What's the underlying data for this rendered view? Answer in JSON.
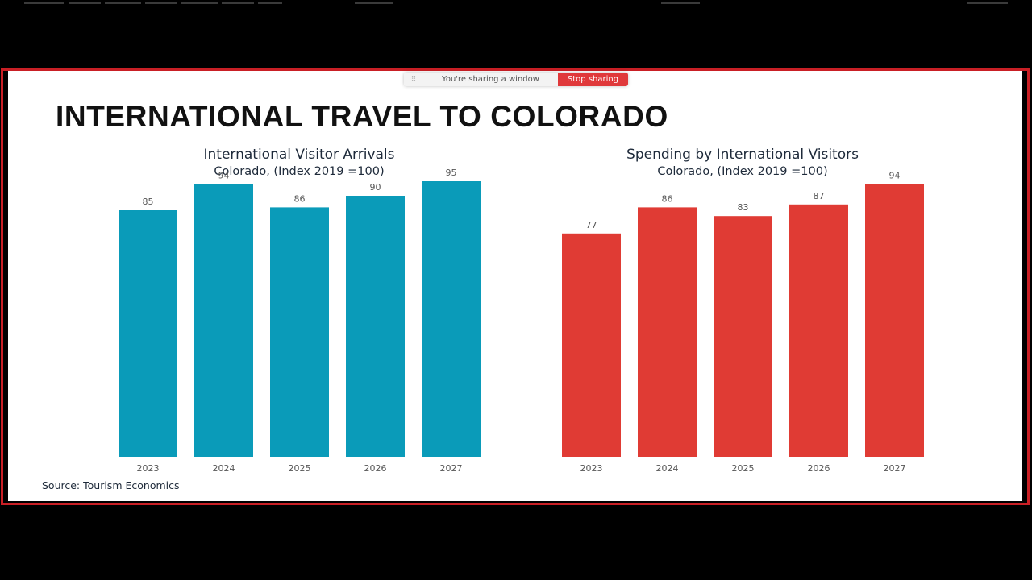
{
  "screen_share": {
    "message": "You're sharing a window",
    "stop_label": "Stop sharing"
  },
  "slide": {
    "title": "INTERNATIONAL TRAVEL TO COLORADO",
    "source": "Source: Tourism Economics"
  },
  "chart_data": [
    {
      "type": "bar",
      "title": "International Visitor Arrivals",
      "subtitle": "Colorado, (Index 2019 =100)",
      "categories": [
        "2023",
        "2024",
        "2025",
        "2026",
        "2027"
      ],
      "values": [
        85,
        94,
        86,
        90,
        95
      ],
      "color": "#0a9bb9",
      "ylim": [
        0,
        100
      ],
      "grid": false,
      "legend": false
    },
    {
      "type": "bar",
      "title": "Spending by International Visitors",
      "subtitle": "Colorado, (Index 2019 =100)",
      "categories": [
        "2023",
        "2024",
        "2025",
        "2026",
        "2027"
      ],
      "values": [
        77,
        86,
        83,
        87,
        94
      ],
      "color": "#e03b34",
      "ylim": [
        0,
        100
      ],
      "grid": false,
      "legend": false
    }
  ]
}
